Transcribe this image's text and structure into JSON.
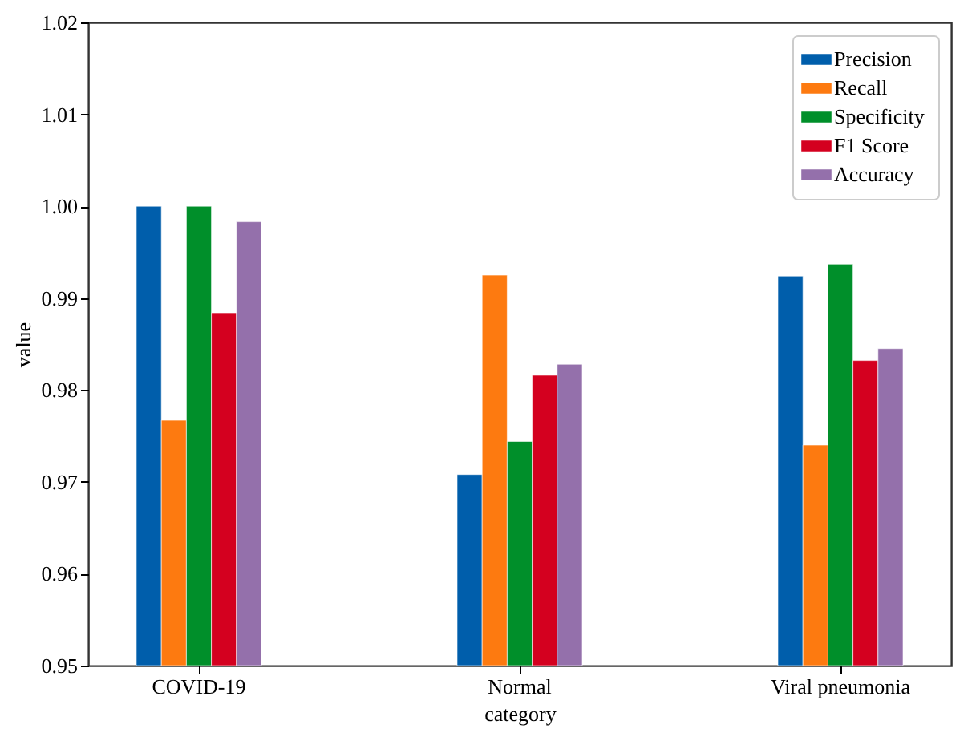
{
  "chart_data": {
    "type": "bar",
    "xlabel": "category",
    "ylabel": "value",
    "categories": [
      "COVID-19",
      "Normal",
      "Viral pneumonia"
    ],
    "series": [
      {
        "name": "Precision",
        "color": "#005eab",
        "values": [
          1.0,
          0.9708,
          0.9924
        ]
      },
      {
        "name": "Recall",
        "color": "#fd7a10",
        "values": [
          0.9767,
          0.9925,
          0.974
        ]
      },
      {
        "name": "Specificity",
        "color": "#008f2a",
        "values": [
          1.0,
          0.9744,
          0.9937
        ]
      },
      {
        "name": "F1 Score",
        "color": "#d4001f",
        "values": [
          0.9884,
          0.9816,
          0.9832
        ]
      },
      {
        "name": "Accuracy",
        "color": "#9470ab",
        "values": [
          0.9983,
          0.9828,
          0.9845
        ]
      }
    ],
    "ylim": [
      0.95,
      1.02
    ],
    "yticks": [
      {
        "value": 0.95,
        "label": "0.95"
      },
      {
        "value": 0.96,
        "label": "0.96"
      },
      {
        "value": 0.97,
        "label": "0.97"
      },
      {
        "value": 0.98,
        "label": "0.98"
      },
      {
        "value": 0.99,
        "label": "0.99"
      },
      {
        "value": 1.0,
        "label": "1.00"
      },
      {
        "value": 1.01,
        "label": "1.01"
      },
      {
        "value": 1.02,
        "label": "1.02"
      }
    ],
    "grid": false,
    "legend": "top right"
  }
}
